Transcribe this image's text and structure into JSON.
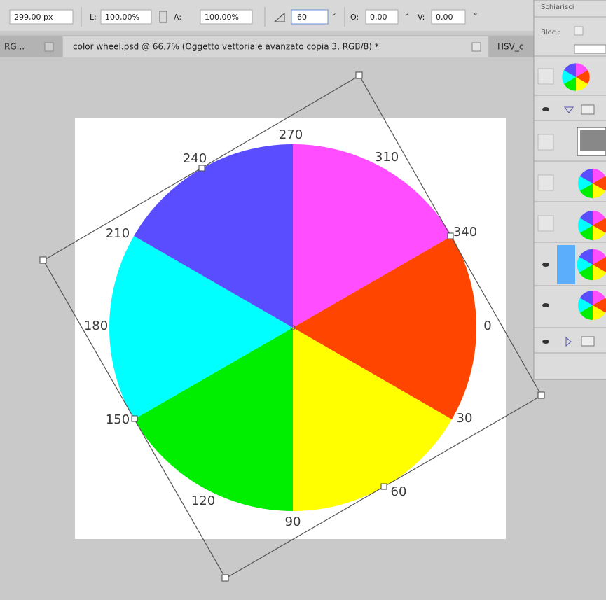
{
  "toolbar": {
    "width": "299,00 px",
    "l_label": "L:",
    "l_value": "100,00%",
    "a_label": "A:",
    "a_value": "100,00%",
    "angle": "60",
    "angle_unit": "°",
    "o_label": "O:",
    "o_value": "0,00",
    "o_unit": "°",
    "v_label": "V:",
    "v_value": "0,00",
    "v_unit": "°"
  },
  "tabs": [
    {
      "title": "RG..."
    },
    {
      "title": "color wheel.psd @ 66,7% (Oggetto vettoriale avanzato copia 3, RGB/8) *"
    },
    {
      "title": "HSV_c"
    }
  ],
  "wheel": {
    "labels": [
      "270",
      "310",
      "340",
      "0",
      "30",
      "60",
      "90",
      "120",
      "150",
      "180",
      "210",
      "240"
    ]
  },
  "layers_panel": {
    "blend_mode": "Schiarisci",
    "lock_label": "Bloc.:"
  }
}
